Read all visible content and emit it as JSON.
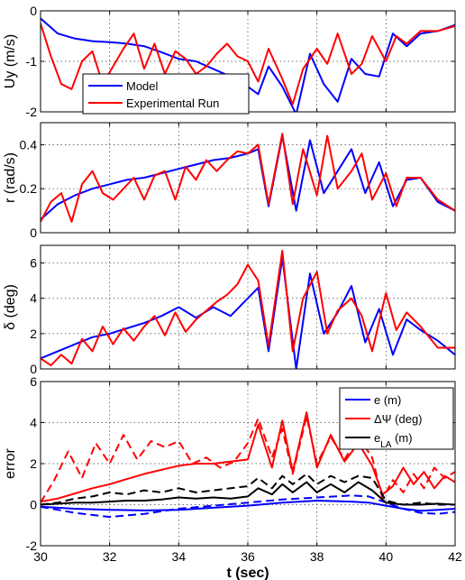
{
  "chart_data": [
    {
      "type": "line",
      "ylabel": "Uy (m/s)",
      "xlim": [
        30,
        42
      ],
      "ylim": [
        -2,
        0
      ],
      "yticks": [
        "-2",
        "-1",
        "0"
      ],
      "grid": true,
      "legend": "center-left",
      "series": [
        {
          "name": "Model",
          "color": "#0000ff",
          "style": "solid",
          "x": [
            30,
            30.5,
            31,
            31.5,
            32,
            32.5,
            33,
            33.5,
            34,
            34.5,
            35,
            35.5,
            36,
            36.3,
            36.6,
            37,
            37.4,
            37.8,
            38.2,
            38.6,
            39,
            39.4,
            39.8,
            40.2,
            40.6,
            41,
            41.5,
            42
          ],
          "y": [
            -0.15,
            -0.45,
            -0.55,
            -0.6,
            -0.62,
            -0.65,
            -0.7,
            -0.82,
            -0.95,
            -1.0,
            -1.15,
            -1.3,
            -1.5,
            -1.65,
            -1.1,
            -1.5,
            -2.05,
            -0.85,
            -1.45,
            -1.8,
            -0.95,
            -1.25,
            -1.3,
            -0.45,
            -0.7,
            -0.45,
            -0.4,
            -0.28
          ]
        },
        {
          "name": "Experimental Run",
          "color": "#ff0000",
          "style": "solid",
          "x": [
            30,
            30.3,
            30.6,
            30.9,
            31.2,
            31.5,
            31.8,
            32.1,
            32.4,
            32.7,
            33,
            33.3,
            33.6,
            33.9,
            34.2,
            34.5,
            34.8,
            35.1,
            35.4,
            35.7,
            36,
            36.3,
            36.6,
            37,
            37.3,
            37.6,
            38,
            38.3,
            38.6,
            39,
            39.3,
            39.6,
            40,
            40.3,
            40.6,
            41,
            41.5,
            42
          ],
          "y": [
            -0.25,
            -0.9,
            -1.45,
            -1.55,
            -1.0,
            -0.8,
            -1.45,
            -1.1,
            -0.75,
            -0.45,
            -1.15,
            -0.65,
            -1.25,
            -0.8,
            -0.95,
            -1.25,
            -1.1,
            -0.85,
            -0.65,
            -0.9,
            -1.0,
            -1.4,
            -0.75,
            -1.35,
            -1.85,
            -1.15,
            -0.75,
            -1.05,
            -0.45,
            -1.25,
            -1.05,
            -0.5,
            -1.0,
            -0.5,
            -0.65,
            -0.4,
            -0.4,
            -0.3
          ]
        }
      ]
    },
    {
      "type": "line",
      "ylabel": "r (rad/s)",
      "xlim": [
        30,
        42
      ],
      "ylim": [
        0,
        0.5
      ],
      "yticks": [
        "0",
        "0.2",
        "0.4"
      ],
      "grid": true,
      "series": [
        {
          "name": "Model",
          "color": "#0000ff",
          "style": "solid",
          "x": [
            30,
            30.5,
            31,
            31.5,
            32,
            32.5,
            33,
            33.5,
            34,
            34.5,
            35,
            35.5,
            36,
            36.3,
            36.6,
            37,
            37.4,
            37.8,
            38.2,
            38.6,
            39,
            39.4,
            39.8,
            40.2,
            40.6,
            41,
            41.5,
            42
          ],
          "y": [
            0.06,
            0.13,
            0.17,
            0.2,
            0.22,
            0.24,
            0.25,
            0.27,
            0.29,
            0.31,
            0.33,
            0.34,
            0.36,
            0.38,
            0.12,
            0.44,
            0.1,
            0.42,
            0.18,
            0.28,
            0.38,
            0.18,
            0.32,
            0.12,
            0.24,
            0.25,
            0.14,
            0.1
          ]
        },
        {
          "name": "Experimental Run",
          "color": "#ff0000",
          "style": "solid",
          "x": [
            30,
            30.3,
            30.6,
            30.9,
            31.2,
            31.5,
            31.8,
            32.1,
            32.4,
            32.7,
            33,
            33.3,
            33.6,
            33.9,
            34.2,
            34.5,
            34.8,
            35.1,
            35.4,
            35.7,
            36,
            36.3,
            36.6,
            37,
            37.3,
            37.6,
            38,
            38.3,
            38.6,
            39,
            39.3,
            39.6,
            40,
            40.3,
            40.6,
            41,
            41.5,
            42
          ],
          "y": [
            0.05,
            0.14,
            0.18,
            0.05,
            0.22,
            0.28,
            0.18,
            0.15,
            0.2,
            0.25,
            0.15,
            0.26,
            0.28,
            0.15,
            0.3,
            0.24,
            0.33,
            0.28,
            0.33,
            0.37,
            0.36,
            0.4,
            0.13,
            0.45,
            0.13,
            0.38,
            0.17,
            0.44,
            0.2,
            0.28,
            0.36,
            0.15,
            0.27,
            0.12,
            0.25,
            0.25,
            0.15,
            0.1
          ]
        }
      ]
    },
    {
      "type": "line",
      "ylabel": "δ (deg)",
      "xlim": [
        30,
        42
      ],
      "ylim": [
        0,
        7
      ],
      "yticks": [
        "0",
        "2",
        "4",
        "6"
      ],
      "grid": true,
      "series": [
        {
          "name": "Model",
          "color": "#0000ff",
          "style": "solid",
          "x": [
            30,
            30.5,
            31,
            31.5,
            32,
            32.5,
            33,
            33.5,
            34,
            34.5,
            35,
            35.5,
            36,
            36.3,
            36.6,
            37,
            37.4,
            37.8,
            38.2,
            38.6,
            39,
            39.4,
            39.8,
            40.2,
            40.6,
            41,
            41.5,
            42
          ],
          "y": [
            0.6,
            1.0,
            1.4,
            1.8,
            2.0,
            2.3,
            2.6,
            3.0,
            3.5,
            2.9,
            3.5,
            3.0,
            4.0,
            4.6,
            1.0,
            6.3,
            0.0,
            5.4,
            2.0,
            3.2,
            4.7,
            1.5,
            3.4,
            0.8,
            2.8,
            2.2,
            1.6,
            0.8
          ]
        },
        {
          "name": "Experimental Run",
          "color": "#ff0000",
          "style": "solid",
          "x": [
            30,
            30.3,
            30.6,
            30.9,
            31.2,
            31.5,
            31.8,
            32.1,
            32.4,
            32.7,
            33,
            33.3,
            33.6,
            33.9,
            34.2,
            34.5,
            34.8,
            35.1,
            35.4,
            35.7,
            36,
            36.3,
            36.6,
            37,
            37.3,
            37.6,
            38,
            38.3,
            38.6,
            39,
            39.3,
            39.6,
            40,
            40.3,
            40.6,
            41,
            41.5,
            42
          ],
          "y": [
            0.6,
            0.2,
            0.8,
            0.3,
            1.7,
            1.0,
            2.4,
            1.4,
            2.3,
            1.6,
            2.4,
            3.0,
            1.9,
            3.2,
            2.1,
            2.8,
            3.3,
            3.8,
            4.2,
            4.8,
            5.9,
            5.0,
            1.3,
            6.7,
            1.0,
            4.0,
            5.5,
            2.0,
            3.3,
            4.0,
            3.0,
            1.0,
            4.3,
            2.2,
            3.2,
            2.4,
            1.2,
            1.2
          ]
        }
      ]
    },
    {
      "type": "line",
      "xlabel": "t (sec)",
      "ylabel": "error",
      "xlim": [
        30,
        42
      ],
      "ylim": [
        -2,
        6
      ],
      "yticks": [
        "-2",
        "0",
        "2",
        "4",
        "6"
      ],
      "xticks": [
        "30",
        "32",
        "34",
        "36",
        "38",
        "40",
        "42"
      ],
      "grid": true,
      "legend": "top-right",
      "series": [
        {
          "name": "e (m)",
          "color": "#0000ff",
          "style": "solid",
          "x": [
            30,
            31,
            32,
            33,
            34,
            35,
            36,
            37,
            38,
            39,
            39.5,
            40,
            40.5,
            41,
            41.5,
            42
          ],
          "y": [
            -0.1,
            -0.2,
            -0.25,
            -0.28,
            -0.25,
            -0.15,
            -0.05,
            0.1,
            0.2,
            0.15,
            0.1,
            -0.05,
            -0.2,
            -0.3,
            -0.25,
            -0.2
          ]
        },
        {
          "name": "",
          "color": "#0000ff",
          "style": "dashed",
          "x": [
            30,
            31,
            32,
            33,
            34,
            35,
            36,
            37,
            38,
            39,
            39.5,
            40,
            40.5,
            41,
            41.5,
            42
          ],
          "y": [
            -0.1,
            -0.4,
            -0.6,
            -0.45,
            -0.2,
            -0.05,
            0.1,
            0.25,
            0.35,
            0.45,
            0.4,
            0.1,
            -0.2,
            -0.4,
            -0.45,
            -0.35
          ]
        },
        {
          "name": "ΔΨ (deg)",
          "color": "#ff0000",
          "style": "solid",
          "x": [
            30,
            30.5,
            31,
            31.5,
            32,
            32.5,
            33,
            33.5,
            34,
            34.5,
            35,
            35.5,
            36,
            36.3,
            36.7,
            37,
            37.3,
            37.7,
            38,
            38.4,
            38.8,
            39.2,
            39.6,
            39.9,
            40.2,
            40.5,
            40.8,
            41.1,
            41.4,
            41.7,
            42
          ],
          "y": [
            0.15,
            0.3,
            0.55,
            0.8,
            1.0,
            1.25,
            1.5,
            1.7,
            1.9,
            2.0,
            2.0,
            2.1,
            2.2,
            3.9,
            1.8,
            4.1,
            1.6,
            4.5,
            1.8,
            3.4,
            2.1,
            3.0,
            1.9,
            0.5,
            0.9,
            1.8,
            1.0,
            1.6,
            0.8,
            1.4,
            1.1
          ]
        },
        {
          "name": "",
          "color": "#ff0000",
          "style": "dashed",
          "x": [
            30,
            30.4,
            30.8,
            31.2,
            31.6,
            32,
            32.4,
            32.8,
            33.2,
            33.6,
            34,
            34.4,
            34.8,
            35.2,
            35.6,
            36,
            36.3,
            36.7,
            37,
            37.3,
            37.7,
            38,
            38.4,
            38.8,
            39.2,
            39.6,
            39.9,
            40.2,
            40.5,
            40.8,
            41.1,
            41.4,
            41.7,
            42
          ],
          "y": [
            0.1,
            1.2,
            2.6,
            1.3,
            3.0,
            2.0,
            3.4,
            2.2,
            3.1,
            2.8,
            3.1,
            2.0,
            2.3,
            1.8,
            2.1,
            3.0,
            4.2,
            2.3,
            3.7,
            1.5,
            4.3,
            2.0,
            3.3,
            2.2,
            3.3,
            2.3,
            0.3,
            1.2,
            0.6,
            1.5,
            0.8,
            1.8,
            1.3,
            1.6
          ]
        },
        {
          "name": "e",
          "name_sub": "LA",
          "name_suffix": " (m)",
          "color": "#000000",
          "style": "solid",
          "x": [
            30,
            30.5,
            31,
            31.5,
            32,
            32.5,
            33,
            33.5,
            34,
            34.5,
            35,
            35.5,
            36,
            36.3,
            36.7,
            37,
            37.3,
            37.7,
            38,
            38.4,
            38.8,
            39.2,
            39.6,
            40,
            40.5,
            41,
            41.5,
            42
          ],
          "y": [
            0.0,
            0.05,
            0.1,
            0.1,
            0.15,
            0.2,
            0.2,
            0.25,
            0.35,
            0.3,
            0.35,
            0.3,
            0.4,
            0.8,
            0.5,
            1.0,
            0.6,
            1.1,
            0.6,
            1.0,
            0.6,
            1.1,
            0.7,
            0.1,
            0.0,
            0.0,
            0.05,
            0.0
          ]
        },
        {
          "name": "",
          "color": "#000000",
          "style": "dashed",
          "x": [
            30,
            30.5,
            31,
            31.5,
            32,
            32.5,
            33,
            33.5,
            34,
            34.5,
            35,
            35.5,
            36,
            36.3,
            36.7,
            37,
            37.3,
            37.7,
            38,
            38.4,
            38.8,
            39.2,
            39.6,
            40,
            40.5,
            41,
            41.5,
            42
          ],
          "y": [
            0.0,
            0.1,
            0.3,
            0.4,
            0.6,
            0.5,
            0.7,
            0.6,
            0.8,
            0.6,
            0.7,
            0.8,
            0.9,
            1.3,
            0.8,
            1.4,
            1.0,
            1.5,
            1.0,
            1.4,
            1.1,
            1.4,
            1.3,
            0.2,
            0.0,
            0.1,
            0.0,
            0.0
          ]
        }
      ]
    }
  ]
}
